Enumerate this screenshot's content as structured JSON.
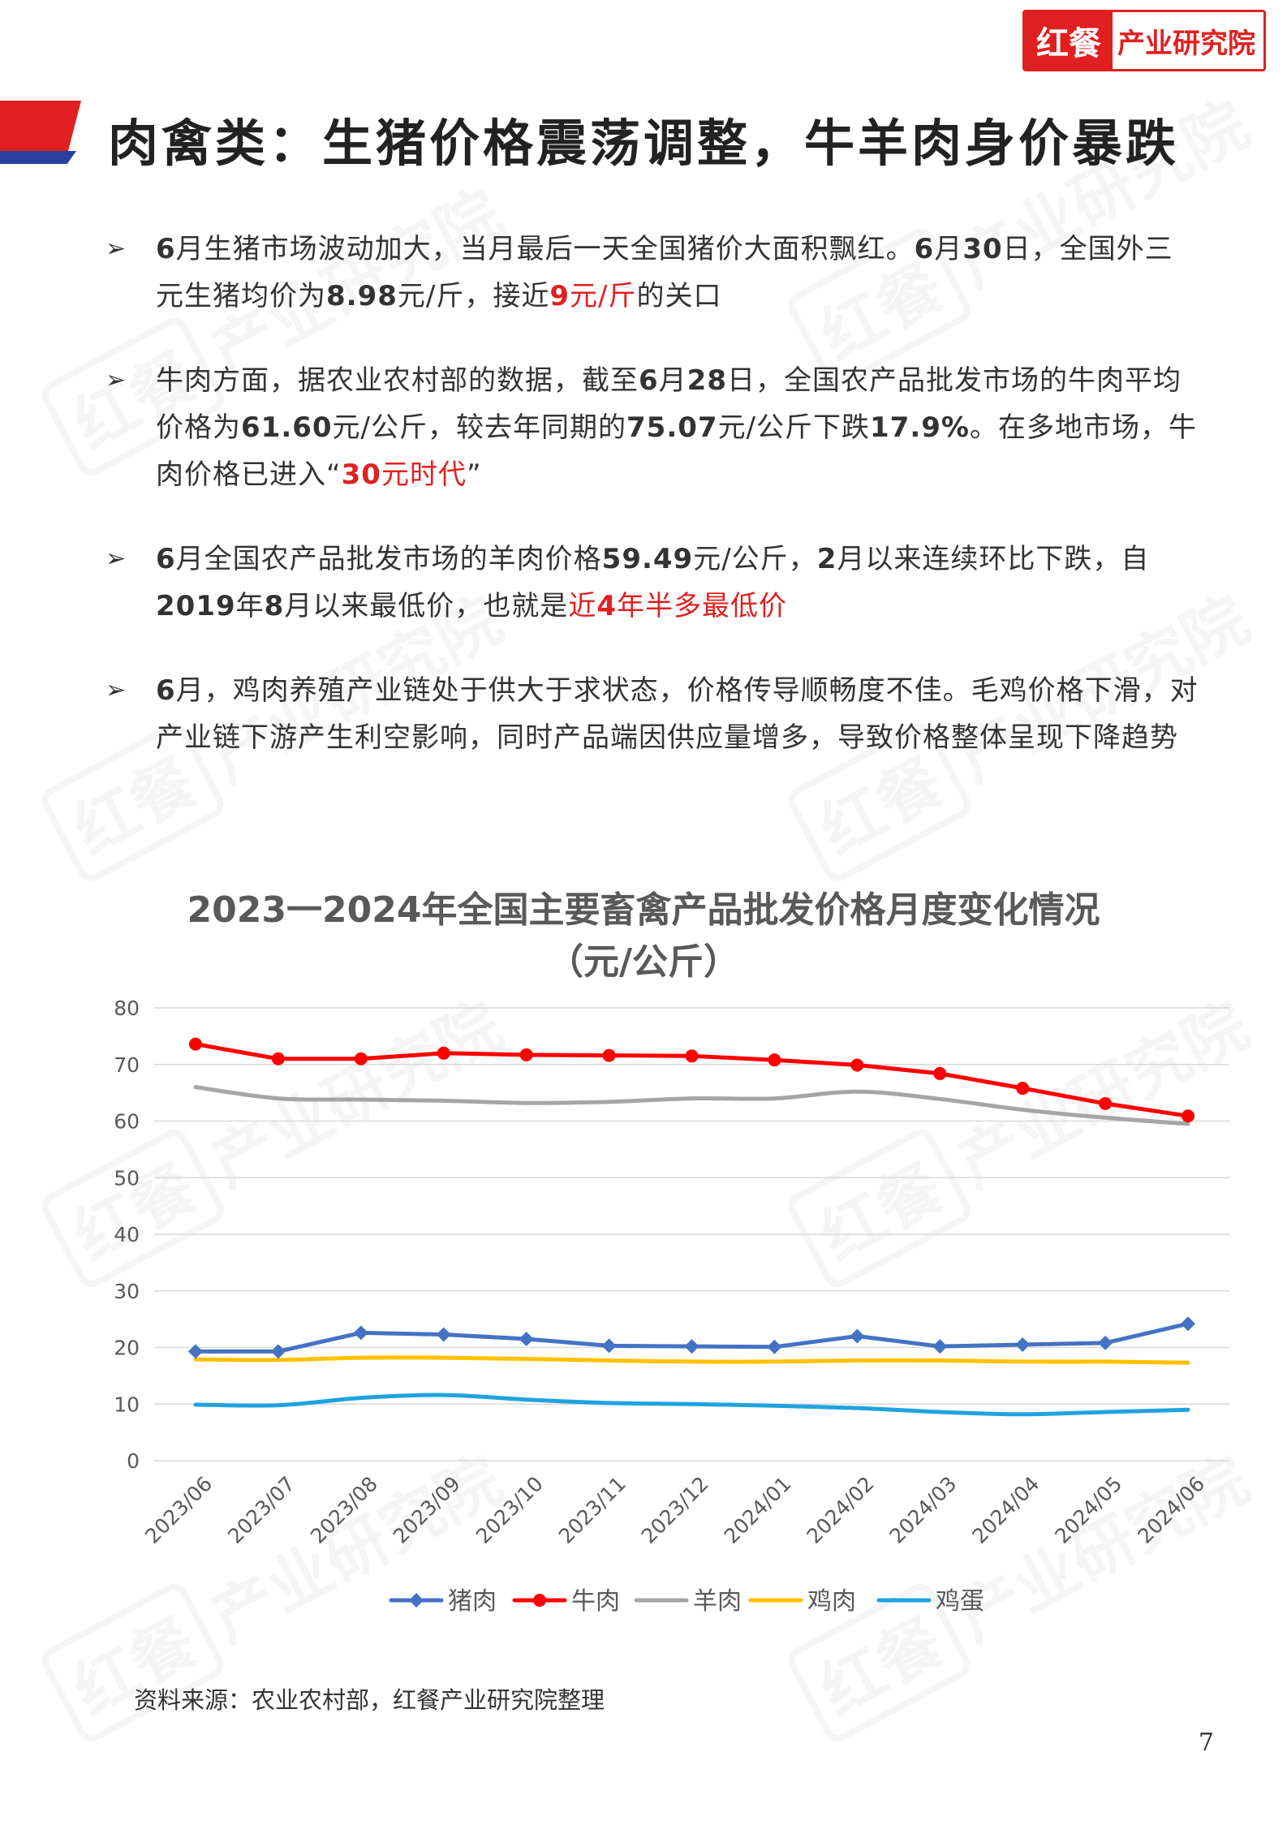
{
  "logo": {
    "mark": "红餐",
    "text": "产业研究院"
  },
  "watermark": {
    "mark": "红餐",
    "text": "产业研究院"
  },
  "title": "肉禽类：生猪价格震荡调整，牛羊肉身价暴跌",
  "bullets": [
    {
      "parts": [
        {
          "t": "",
          "s": "n"
        },
        {
          "t": "6",
          "s": "b"
        },
        {
          "t": "月生猪市场波动加大，当月最后一天全国猪价大面积飘红。",
          "s": "n"
        },
        {
          "t": "6",
          "s": "b"
        },
        {
          "t": "月",
          "s": "n"
        },
        {
          "t": "30",
          "s": "b"
        },
        {
          "t": "日，全国外三元生猪均价为",
          "s": "n"
        },
        {
          "t": "8.98",
          "s": "b"
        },
        {
          "t": "元/斤，接近",
          "s": "n"
        },
        {
          "t": "9",
          "s": "rb"
        },
        {
          "t": "元/斤",
          "s": "r"
        },
        {
          "t": "的关口",
          "s": "n"
        }
      ]
    },
    {
      "parts": [
        {
          "t": "牛肉方面，据农业农村部的数据，截至",
          "s": "n"
        },
        {
          "t": "6",
          "s": "b"
        },
        {
          "t": "月",
          "s": "n"
        },
        {
          "t": "28",
          "s": "b"
        },
        {
          "t": "日，全国农产品批发市场的牛肉平均价格为",
          "s": "n"
        },
        {
          "t": "61.60",
          "s": "b"
        },
        {
          "t": "元/公斤，较去年同期的",
          "s": "n"
        },
        {
          "t": "75.07",
          "s": "b"
        },
        {
          "t": "元/公斤下跌",
          "s": "n"
        },
        {
          "t": "17.9%",
          "s": "b"
        },
        {
          "t": "。在多地市场，牛肉价格已进入“",
          "s": "n"
        },
        {
          "t": "30",
          "s": "rb"
        },
        {
          "t": "元时代",
          "s": "r"
        },
        {
          "t": "”",
          "s": "n"
        }
      ]
    },
    {
      "parts": [
        {
          "t": "6",
          "s": "b"
        },
        {
          "t": "月全国农产品批发市场的羊肉价格",
          "s": "n"
        },
        {
          "t": "59.49",
          "s": "b"
        },
        {
          "t": "元/公斤，",
          "s": "n"
        },
        {
          "t": "2",
          "s": "b"
        },
        {
          "t": "月以来连续环比下跌，自",
          "s": "n"
        },
        {
          "t": "2019",
          "s": "b"
        },
        {
          "t": "年",
          "s": "n"
        },
        {
          "t": "8",
          "s": "b"
        },
        {
          "t": "月以来最低价，也就是",
          "s": "n"
        },
        {
          "t": "近",
          "s": "r"
        },
        {
          "t": "4",
          "s": "rb"
        },
        {
          "t": "年半多最低价",
          "s": "r"
        }
      ]
    },
    {
      "parts": [
        {
          "t": "6",
          "s": "b"
        },
        {
          "t": "月，鸡肉养殖产业链处于供大于求状态，价格传导顺畅度不佳。毛鸡价格下滑，对产业链下游产生利空影响，同时产品端因供应量增多，导致价格整体呈现下降趋势",
          "s": "n"
        }
      ]
    }
  ],
  "chart_data": {
    "type": "line",
    "title": "2023一2024年全国主要畜禽产品批发价格月度变化情况",
    "subtitle": "（元/公斤）",
    "categories": [
      "2023/06",
      "2023/07",
      "2023/08",
      "2023/09",
      "2023/10",
      "2023/11",
      "2023/12",
      "2024/01",
      "2024/02",
      "2024/03",
      "2024/04",
      "2024/05",
      "2024/06"
    ],
    "ylim": [
      0,
      80
    ],
    "yticks": [
      0,
      10,
      20,
      30,
      40,
      50,
      60,
      70,
      80
    ],
    "grid": true,
    "legend_position": "bottom",
    "series": [
      {
        "name": "猪肉",
        "color": "#4472C4",
        "marker": true,
        "values": [
          19.3,
          19.3,
          22.6,
          22.3,
          21.5,
          20.3,
          20.2,
          20.1,
          22.0,
          20.2,
          20.5,
          20.8,
          24.2
        ]
      },
      {
        "name": "牛肉",
        "color": "#FF0000",
        "marker": true,
        "values": [
          73.6,
          71.0,
          71.0,
          72.0,
          71.7,
          71.6,
          71.5,
          70.8,
          69.9,
          68.4,
          65.8,
          63.1,
          60.9
        ]
      },
      {
        "name": "羊肉",
        "color": "#A5A5A5",
        "marker": false,
        "values": [
          66.0,
          64.0,
          63.8,
          63.6,
          63.2,
          63.4,
          64.0,
          64.0,
          65.2,
          63.9,
          62.0,
          60.6,
          59.5
        ]
      },
      {
        "name": "鸡肉",
        "color": "#FFC000",
        "marker": false,
        "values": [
          17.9,
          17.8,
          18.2,
          18.2,
          18.0,
          17.7,
          17.5,
          17.5,
          17.7,
          17.7,
          17.5,
          17.5,
          17.3
        ]
      },
      {
        "name": "鸡蛋",
        "color": "#1FA3E0",
        "marker": false,
        "values": [
          9.9,
          9.8,
          11.1,
          11.6,
          10.8,
          10.2,
          10.0,
          9.7,
          9.3,
          8.6,
          8.2,
          8.6,
          9.0
        ]
      }
    ]
  },
  "source": "资料来源：农业农村部，红餐产业研究院整理",
  "page_number": "7"
}
